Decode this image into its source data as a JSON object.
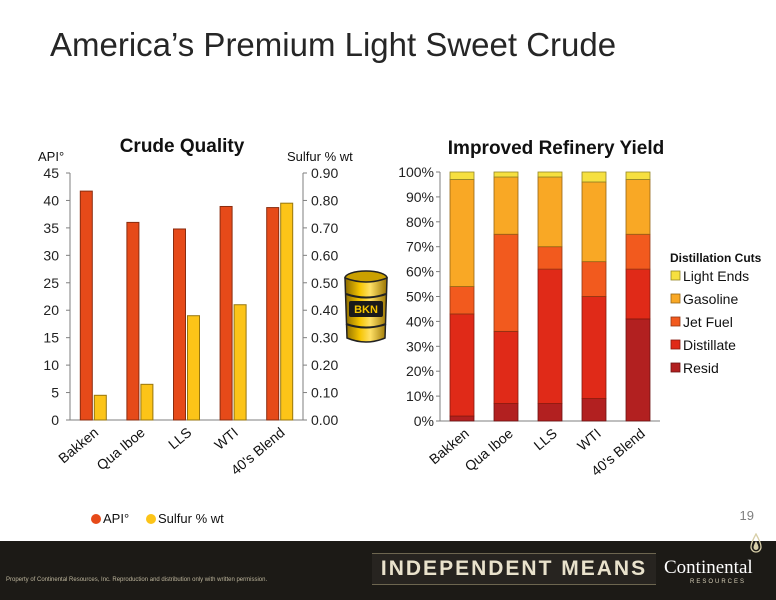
{
  "slide": {
    "title": "America’s Premium Light Sweet Crude",
    "page_number": "19",
    "barrel_label": "BKN"
  },
  "footer": {
    "copyright": "Property of Continental Resources, Inc. Reproduction and distribution only with written permission.",
    "slogan": "INDEPENDENT MEANS",
    "brand": "Continental",
    "brand_sub": "RESOURCES"
  },
  "chart_data": [
    {
      "type": "bar",
      "title": "Crude Quality",
      "categories": [
        "Bakken",
        "Qua Iboe",
        "LLS",
        "WTI",
        "40's Blend"
      ],
      "y_left": {
        "label": "API°",
        "range": [
          0,
          45
        ],
        "ticks": [
          "0",
          "5",
          "10",
          "15",
          "20",
          "25",
          "30",
          "35",
          "40",
          "45"
        ]
      },
      "y_right": {
        "label": "Sulfur % wt",
        "range": [
          0,
          0.9
        ],
        "ticks": [
          "0.00",
          "0.10",
          "0.20",
          "0.30",
          "0.40",
          "0.50",
          "0.60",
          "0.70",
          "0.80",
          "0.90"
        ]
      },
      "series": [
        {
          "name": "API°",
          "axis": "left",
          "color": "#e64a19",
          "values": [
            41.7,
            36.0,
            34.8,
            38.9,
            38.7
          ]
        },
        {
          "name": "Sulfur % wt",
          "axis": "right",
          "color": "#fcc418",
          "values": [
            0.09,
            0.13,
            0.38,
            0.42,
            0.79
          ]
        }
      ],
      "legend_position": "bottom",
      "grid": false
    },
    {
      "type": "bar",
      "stacked": true,
      "title": "Improved Refinery Yield",
      "categories": [
        "Bakken",
        "Qua Iboe",
        "LLS",
        "WTI",
        "40's Blend"
      ],
      "y": {
        "range": [
          0,
          100
        ],
        "ticks": [
          "0%",
          "10%",
          "20%",
          "30%",
          "40%",
          "50%",
          "60%",
          "70%",
          "80%",
          "90%",
          "100%"
        ]
      },
      "legend_title": "Distillation Cuts",
      "legend_position": "right",
      "series": [
        {
          "name": "Resid",
          "color": "#b22020",
          "values": [
            2,
            7,
            7,
            9,
            41
          ]
        },
        {
          "name": "Distillate",
          "color": "#e02a18",
          "values": [
            41,
            29,
            54,
            41,
            20
          ]
        },
        {
          "name": "Jet Fuel",
          "color": "#f25a1e",
          "values": [
            11,
            39,
            9,
            14,
            14
          ]
        },
        {
          "name": "Gasoline",
          "color": "#f9a825",
          "values": [
            43,
            23,
            28,
            32,
            22
          ]
        },
        {
          "name": "Light Ends",
          "color": "#f6e040",
          "values": [
            3,
            2,
            2,
            4,
            3
          ]
        }
      ],
      "grid": false
    }
  ]
}
